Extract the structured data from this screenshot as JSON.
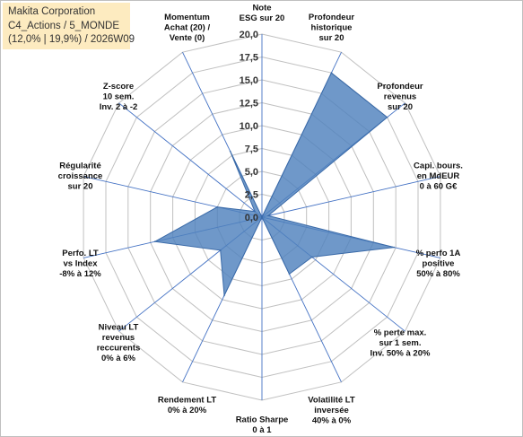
{
  "header": {
    "line1": "Makita Corporation",
    "line2": "C4_Actions / 5_MONDE",
    "line3": "(12,0% | 19,9%) / 2026W09"
  },
  "chart_data": {
    "type": "radar",
    "rlim": [
      0,
      20
    ],
    "rticks": [
      "0,0",
      "2,5",
      "5,0",
      "7,5",
      "10,0",
      "12,5",
      "15,0",
      "17,5",
      "20,0"
    ],
    "grid": true,
    "legend": "none",
    "fill_color": "#4f81bd",
    "grid_color": "#c0c0c0",
    "axis_color": "#4472c4",
    "axes": [
      {
        "label": [
          "Note",
          "ESG sur 20"
        ],
        "value": 0
      },
      {
        "label": [
          "Profondeur",
          "historique",
          "sur 20"
        ],
        "value": 17.5
      },
      {
        "label": [
          "Profondeur",
          "revenus",
          "sur 20"
        ],
        "value": 17.5
      },
      {
        "label": [
          "Capi. bours.",
          "en MdEUR",
          "0 à 60 G€"
        ],
        "value": 0.7
      },
      {
        "label": [
          "% perfo 1A",
          "positive",
          "50% à 80%"
        ],
        "value": 14.8
      },
      {
        "label": [
          "% perte max.",
          "sur 1 sem.",
          "Inv. 50% à 20%"
        ],
        "value": 7.0
      },
      {
        "label": [
          "Volatilité LT",
          "inversée",
          "40% à 0%"
        ],
        "value": 6.9
      },
      {
        "label": [
          "Ratio Sharpe",
          "0 à 1"
        ],
        "value": 0
      },
      {
        "label": [
          "Rendement LT",
          "0% à 20%"
        ],
        "value": 9.5
      },
      {
        "label": [
          "Niveau LT",
          "revenus",
          "reccurents",
          "0% à 6%"
        ],
        "value": 5.8
      },
      {
        "label": [
          "Perfo. LT",
          "vs Index",
          "-8% à 12%"
        ],
        "value": 12.0
      },
      {
        "label": [
          "Régularité",
          "croissance",
          "sur 20"
        ],
        "value": 5.0
      },
      {
        "label": [
          "Z-score",
          "10 sem.",
          "Inv. 2 à -2"
        ],
        "value": 1.0
      },
      {
        "label": [
          "Momentum",
          "Achat (20) /",
          "Vente (0)"
        ],
        "value": 8.0
      }
    ]
  }
}
